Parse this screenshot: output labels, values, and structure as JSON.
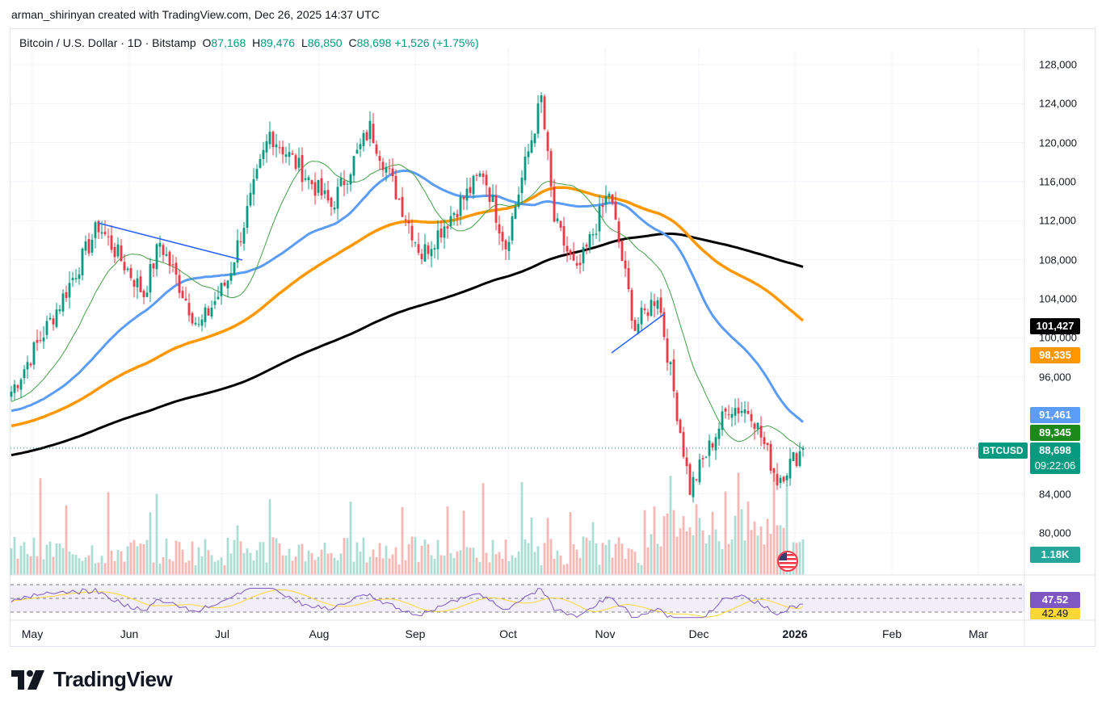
{
  "caption": "arman_shirinyan created with TradingView.com, Dec 26, 2025 14:37 UTC",
  "legend": {
    "title": "Bitcoin / U.S. Dollar · 1D · Bitstamp",
    "open_key": "O",
    "open": "87,168",
    "high_key": "H",
    "high": "89,476",
    "low_key": "L",
    "low": "86,850",
    "close_key": "C",
    "close": "88,698",
    "change": "+1,526 (+1.75%)"
  },
  "price_tags": {
    "ma200": "101,427",
    "ma100": "98,335",
    "ma50": "91,461",
    "ma20": "89,345",
    "last": "88,698",
    "countdown": "09:22:06",
    "symbol": "BTCUSD",
    "volume": "1.18K",
    "rsi": "47.52",
    "rsi_ma": "42.49"
  },
  "brand": "TradingView",
  "colors": {
    "up": "#089981",
    "down": "#f23645",
    "ma20": "#43a047",
    "ma50": "#5b9cf6",
    "ma100": "#ff9800",
    "ma200": "#000000",
    "rsi": "#7e57c2",
    "rsi_ma": "#fdd835",
    "trendline": "#2962ff"
  },
  "chart_data": {
    "type": "candlestick",
    "title": "Bitcoin / U.S. Dollar · 1D · Bitstamp",
    "y_axis_labels": [
      "128,000",
      "124,000",
      "120,000",
      "116,000",
      "112,000",
      "108,000",
      "104,000",
      "100,000",
      "96,000",
      "84,000",
      "80,000"
    ],
    "ylim": [
      77000,
      131000
    ],
    "x_axis_labels": [
      {
        "label": "May",
        "bold": false
      },
      {
        "label": "Jun",
        "bold": false
      },
      {
        "label": "Jul",
        "bold": false
      },
      {
        "label": "Aug",
        "bold": false
      },
      {
        "label": "Sep",
        "bold": false
      },
      {
        "label": "Oct",
        "bold": false
      },
      {
        "label": "Nov",
        "bold": false
      },
      {
        "label": "Dec",
        "bold": false
      },
      {
        "label": "2026",
        "bold": true
      },
      {
        "label": "Feb",
        "bold": false
      },
      {
        "label": "Mar",
        "bold": false
      }
    ],
    "series_anchor_points": [
      {
        "date": "Apr 25",
        "close": 94500
      },
      {
        "date": "May 10",
        "close": 103500
      },
      {
        "date": "May 22",
        "close": 111500
      },
      {
        "date": "Jun 5",
        "close": 104500
      },
      {
        "date": "Jun 10",
        "close": 109800
      },
      {
        "date": "Jun 22",
        "close": 101000
      },
      {
        "date": "Jul 1",
        "close": 106000
      },
      {
        "date": "Jul 14",
        "close": 121000
      },
      {
        "date": "Aug 2",
        "close": 113500
      },
      {
        "date": "Aug 14",
        "close": 121500
      },
      {
        "date": "Aug 30",
        "close": 108500
      },
      {
        "date": "Sep 18",
        "close": 117000
      },
      {
        "date": "Sep 25",
        "close": 109500
      },
      {
        "date": "Oct 6",
        "close": 124500
      },
      {
        "date": "Oct 10",
        "close": 112000
      },
      {
        "date": "Oct 17",
        "close": 106500
      },
      {
        "date": "Oct 27",
        "close": 115000
      },
      {
        "date": "Nov 4",
        "close": 101000
      },
      {
        "date": "Nov 11",
        "close": 104500
      },
      {
        "date": "Nov 21",
        "close": 84500
      },
      {
        "date": "Dec 3",
        "close": 93000
      },
      {
        "date": "Dec 10",
        "close": 92500
      },
      {
        "date": "Dec 18",
        "close": 85500
      },
      {
        "date": "Dec 26",
        "close": 88698
      }
    ],
    "moving_averages": [
      {
        "name": "MA20",
        "last": 89345
      },
      {
        "name": "MA50",
        "last": 91461
      },
      {
        "name": "MA100",
        "last": 98335
      },
      {
        "name": "MA200",
        "last": 101427
      }
    ],
    "volume_last": "1.18K",
    "rsi": {
      "value": 47.52,
      "ma": 42.49,
      "bands": [
        70,
        50,
        30
      ]
    }
  }
}
